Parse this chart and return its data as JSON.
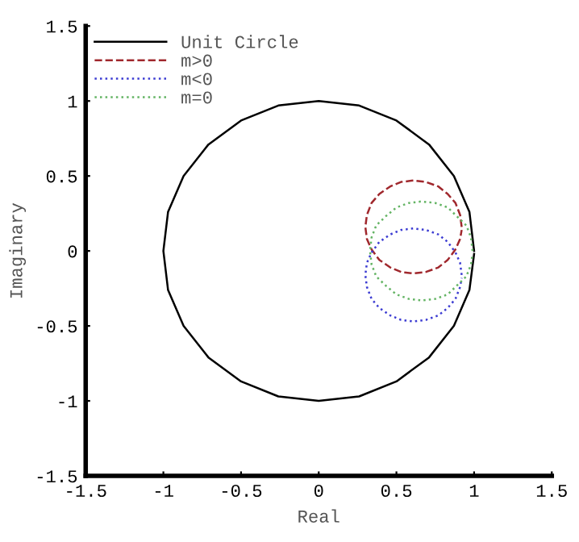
{
  "chart_data": {
    "type": "line",
    "xlabel": "Real",
    "ylabel": "Imaginary",
    "xlim": [
      -1.5,
      1.5
    ],
    "ylim": [
      -1.5,
      1.5
    ],
    "xticks": [
      {
        "value": -1.5,
        "label": "-1.5"
      },
      {
        "value": -1,
        "label": "-1"
      },
      {
        "value": -0.5,
        "label": "-0.5"
      },
      0,
      0.5,
      1,
      1.5
    ],
    "yticks": [
      {
        "value": -1.5,
        "label": "-1.5"
      },
      {
        "value": -1,
        "label": "-1"
      },
      {
        "value": -0.5,
        "label": "-0.5"
      },
      0,
      0.5,
      1,
      1.5
    ],
    "grid": false,
    "legend": "top left",
    "marker": "none",
    "series": [
      {
        "name": "Unit Circle",
        "color": "#000000",
        "line_style": "solid",
        "x": [
          1,
          0.97,
          0.87,
          0.71,
          0.5,
          0.26,
          0,
          -0.26,
          -0.5,
          -0.71,
          -0.87,
          -0.97,
          -1,
          -0.97,
          -0.87,
          -0.71,
          -0.5,
          -0.26,
          0,
          0.26,
          0.5,
          0.71,
          0.87,
          0.97,
          1
        ],
        "values": [
          0,
          0.26,
          0.5,
          0.71,
          0.87,
          0.97,
          1,
          0.97,
          0.87,
          0.71,
          0.5,
          0.26,
          0,
          -0.26,
          -0.5,
          -0.71,
          -0.87,
          -0.97,
          -1,
          -0.97,
          -0.87,
          -0.71,
          -0.5,
          -0.26,
          -0.02
        ]
      },
      {
        "name": "m>0",
        "color": "#a0282d",
        "line_style": "dashed",
        "x": [
          0.92,
          0.91,
          0.88,
          0.83,
          0.77,
          0.69,
          0.61,
          0.53,
          0.46,
          0.39,
          0.34,
          0.31,
          0.3,
          0.31,
          0.34,
          0.39,
          0.46,
          0.53,
          0.61,
          0.69,
          0.77,
          0.83,
          0.88,
          0.91,
          0.92
        ],
        "values": [
          0.16,
          0.24,
          0.32,
          0.38,
          0.43,
          0.46,
          0.47,
          0.46,
          0.43,
          0.38,
          0.32,
          0.24,
          0.16,
          0.08,
          0.01,
          -0.06,
          -0.11,
          -0.14,
          -0.15,
          -0.14,
          -0.11,
          -0.06,
          0.01,
          0.08,
          0.14
        ]
      },
      {
        "name": "m<0",
        "color": "#3c3cd2",
        "line_style": "dotted",
        "x": [
          0.92,
          0.91,
          0.88,
          0.83,
          0.77,
          0.69,
          0.61,
          0.53,
          0.46,
          0.39,
          0.34,
          0.31,
          0.3,
          0.31,
          0.34,
          0.39,
          0.46,
          0.53,
          0.61,
          0.69,
          0.77,
          0.83,
          0.88,
          0.91,
          0.92
        ],
        "values": [
          -0.16,
          -0.08,
          -0.01,
          0.06,
          0.11,
          0.14,
          0.15,
          0.14,
          0.11,
          0.06,
          -0.01,
          -0.08,
          -0.16,
          -0.24,
          -0.32,
          -0.38,
          -0.43,
          -0.46,
          -0.47,
          -0.46,
          -0.43,
          -0.38,
          -0.32,
          -0.24,
          -0.18
        ]
      },
      {
        "name": "m=0",
        "color": "#64b464",
        "line_style": "dotted",
        "x": [
          0.99,
          0.98,
          0.95,
          0.89,
          0.83,
          0.75,
          0.66,
          0.58,
          0.5,
          0.43,
          0.37,
          0.34,
          0.33,
          0.34,
          0.37,
          0.43,
          0.5,
          0.58,
          0.66,
          0.75,
          0.83,
          0.89,
          0.95,
          0.98,
          0.99
        ],
        "values": [
          0,
          0.09,
          0.17,
          0.23,
          0.29,
          0.32,
          0.33,
          0.32,
          0.29,
          0.23,
          0.17,
          0.09,
          0,
          -0.09,
          -0.17,
          -0.23,
          -0.29,
          -0.32,
          -0.33,
          -0.32,
          -0.29,
          -0.23,
          -0.17,
          -0.09,
          -0.02
        ]
      }
    ]
  }
}
